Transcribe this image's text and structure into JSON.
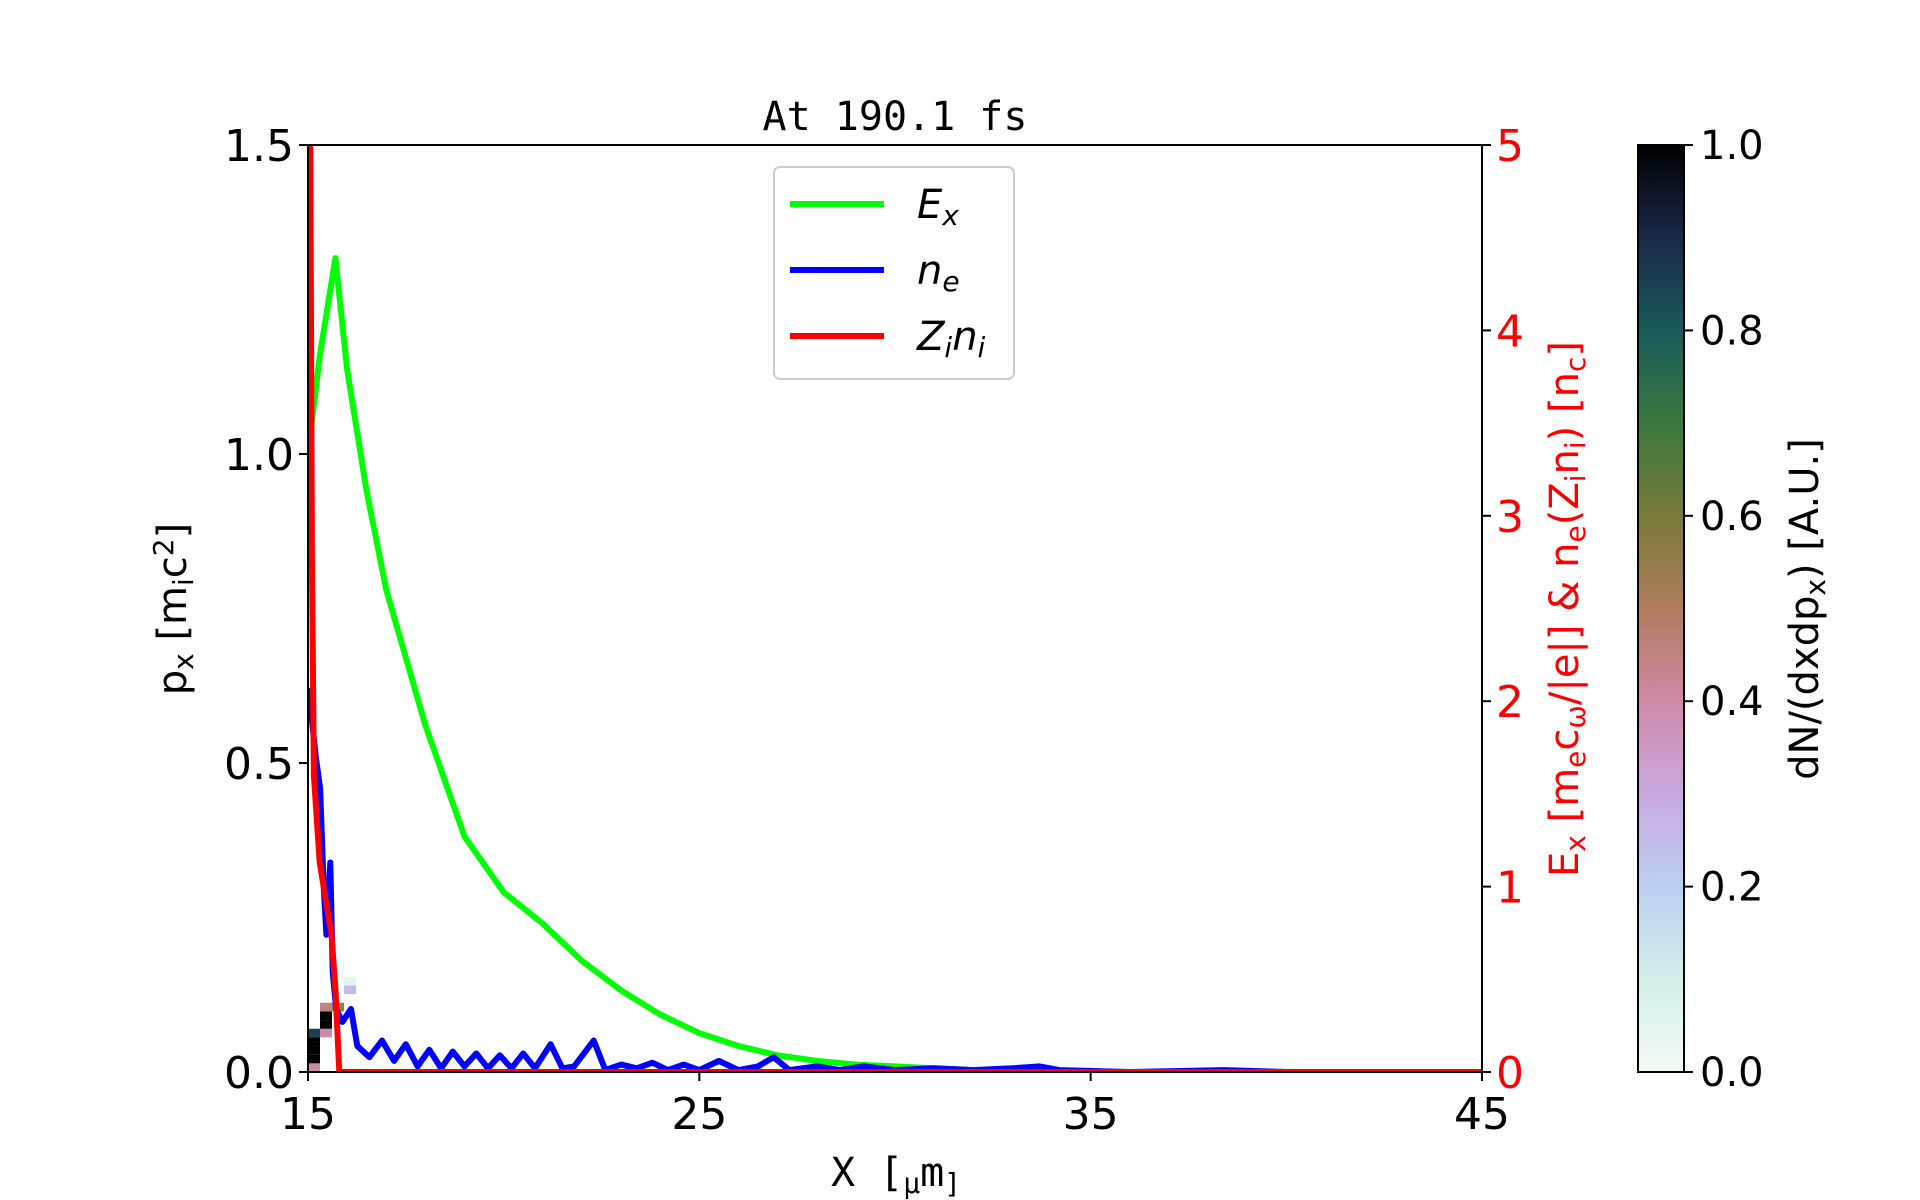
{
  "chart_data": {
    "type": "line",
    "title": "At 190.1 fs",
    "xlabel": "X  [_μm_]",
    "ylabel_left": "p_x  [m_ic^2]",
    "ylabel_right": "E_x  [m_ec_ω/|e|]  &  n_e(Z_in_i)  [n_c]",
    "colorbar_label": "dN/(dxdp_x)  [A.U.]",
    "xlim": [
      15,
      45
    ],
    "ylim_left": [
      0,
      1.5
    ],
    "ylim_right": [
      0,
      5
    ],
    "colorbar_lim": [
      0,
      1
    ],
    "xticks": [
      "15",
      "25",
      "35",
      "45"
    ],
    "xtick_values": [
      15,
      25,
      35,
      45
    ],
    "yticks_left": [
      "0.0",
      "0.5",
      "1.0",
      "1.5"
    ],
    "ytick_left_values": [
      0,
      0.5,
      1.0,
      1.5
    ],
    "yticks_right": [
      "0",
      "1",
      "2",
      "3",
      "4",
      "5"
    ],
    "ytick_right_values": [
      0,
      1,
      2,
      3,
      4,
      5
    ],
    "colorbar_ticks": [
      "0.0",
      "0.2",
      "0.4",
      "0.6",
      "0.8",
      "1.0"
    ],
    "colorbar_tick_values": [
      0,
      0.2,
      0.4,
      0.6,
      0.8,
      1.0
    ],
    "grid": false,
    "legend_position": "upper-center",
    "colors": {
      "right_axis": "#ff0000",
      "Ex": "#00ff00",
      "ne": "#0000ff",
      "Zini": "#ff0000"
    },
    "colormap": [
      "#f4fbf6",
      "#d2efea",
      "#bcd0f0",
      "#c8a9e0",
      "#d08aa8",
      "#b07c5c",
      "#787a3a",
      "#3a783e",
      "#1a5a5a",
      "#1a2848",
      "#000000"
    ],
    "series": [
      {
        "name": "E_x",
        "axis": "right",
        "x": [
          15.0,
          15.3,
          15.7,
          16.0,
          16.5,
          17.0,
          18.0,
          19.0,
          20.0,
          21.0,
          22.0,
          23.0,
          24.0,
          25.0,
          26.0,
          27.0,
          28.0,
          29.0,
          30.0,
          32.0,
          35.0,
          45.0
        ],
        "y": [
          3.33,
          3.86,
          4.39,
          3.79,
          3.13,
          2.6,
          1.87,
          1.27,
          0.97,
          0.8,
          0.6,
          0.44,
          0.31,
          0.21,
          0.14,
          0.09,
          0.06,
          0.04,
          0.03,
          0.01,
          0.0,
          0.0
        ]
      },
      {
        "name": "n_e",
        "axis": "right",
        "x": [
          15.0,
          15.1,
          15.2,
          15.31,
          15.4,
          15.47,
          15.57,
          15.63,
          15.72,
          15.88,
          16.1,
          16.26,
          16.57,
          16.89,
          17.2,
          17.5,
          17.8,
          18.1,
          18.4,
          18.7,
          19.0,
          19.3,
          19.6,
          19.9,
          20.2,
          20.5,
          20.8,
          21.2,
          21.5,
          21.8,
          22.3,
          22.6,
          23.0,
          23.4,
          23.8,
          24.2,
          24.6,
          25.0,
          25.5,
          26.0,
          26.5,
          26.9,
          27.3,
          28.0,
          28.6,
          29.2,
          30.0,
          31.0,
          32.0,
          33.0,
          33.7,
          34.2,
          36.0,
          38.4,
          40.0,
          45.0
        ],
        "y": [
          2.07,
          1.9,
          1.7,
          1.53,
          1.0,
          0.74,
          1.13,
          0.54,
          0.34,
          0.27,
          0.34,
          0.14,
          0.08,
          0.17,
          0.06,
          0.15,
          0.03,
          0.12,
          0.02,
          0.11,
          0.03,
          0.1,
          0.02,
          0.09,
          0.02,
          0.1,
          0.02,
          0.15,
          0.02,
          0.03,
          0.17,
          0.01,
          0.04,
          0.02,
          0.05,
          0.01,
          0.04,
          0.01,
          0.06,
          0.01,
          0.03,
          0.08,
          0.01,
          0.03,
          0.01,
          0.03,
          0.01,
          0.02,
          0.01,
          0.02,
          0.03,
          0.01,
          0.0,
          0.01,
          0.0,
          0.0
        ]
      },
      {
        "name": "Z_in_i",
        "axis": "right",
        "x": [
          15.06,
          15.1,
          15.15,
          15.3,
          15.5,
          15.6,
          15.7,
          15.8,
          45.0
        ],
        "y": [
          5.0,
          2.8,
          1.6,
          1.13,
          0.87,
          0.74,
          0.45,
          0.0,
          0.0
        ]
      }
    ],
    "heatmap": {
      "axis": "left",
      "dx": 0.307,
      "dp": 0.014,
      "cells": [
        {
          "x": 15.0,
          "p": 0.0,
          "v": 0.4
        },
        {
          "x": 15.0,
          "p": 0.014,
          "v": 1.0
        },
        {
          "x": 15.0,
          "p": 0.028,
          "v": 1.0
        },
        {
          "x": 15.0,
          "p": 0.042,
          "v": 1.0
        },
        {
          "x": 15.0,
          "p": 0.056,
          "v": 0.85
        },
        {
          "x": 15.307,
          "p": 0.056,
          "v": 0.4
        },
        {
          "x": 15.307,
          "p": 0.07,
          "v": 1.0
        },
        {
          "x": 15.307,
          "p": 0.084,
          "v": 1.0
        },
        {
          "x": 15.307,
          "p": 0.098,
          "v": 0.45
        },
        {
          "x": 15.614,
          "p": 0.098,
          "v": 0.55
        },
        {
          "x": 15.921,
          "p": 0.126,
          "v": 0.25
        },
        {
          "x": 15.921,
          "p": 0.14,
          "v": 0.05
        }
      ]
    }
  }
}
